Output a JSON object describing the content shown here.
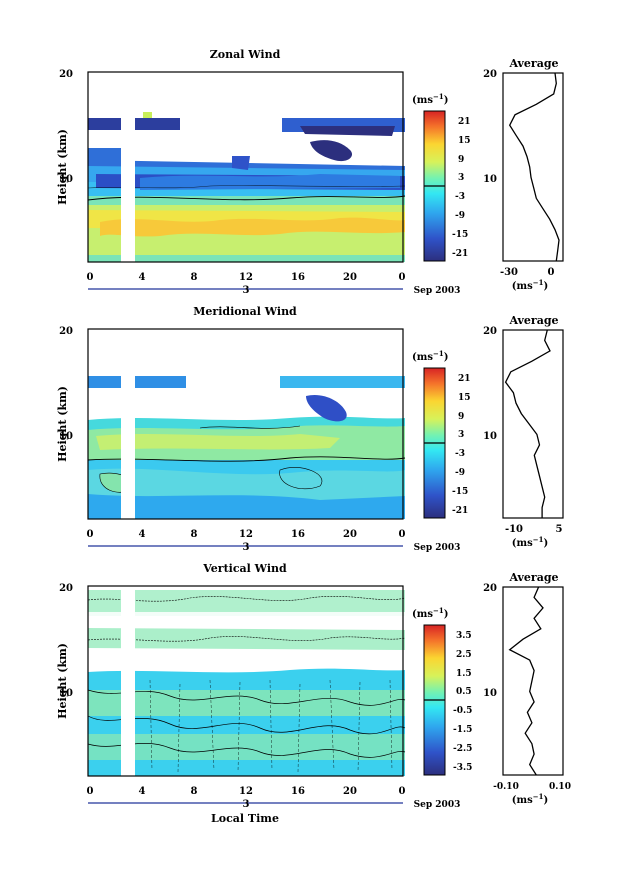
{
  "figure": {
    "xlabel": "Local Time",
    "date_label": "Sep 2003",
    "day_label": "3",
    "unit_label": "(ms",
    "unit_exp": "−1",
    "avg_unit_label": "(ms",
    "avg_unit_exp": "−1"
  },
  "chart_data": [
    {
      "type": "heatmap",
      "title": "Zonal Wind",
      "ylabel": "Height (km)",
      "y_ticks": [
        "20",
        "10"
      ],
      "x_ticks": [
        "0",
        "4",
        "8",
        "12",
        "16",
        "20",
        "0"
      ],
      "xlim": [
        0,
        24
      ],
      "ylim": [
        2,
        20
      ],
      "colorbar": {
        "ticks": [
          "21",
          "15",
          "9",
          "3",
          "-3",
          "-9",
          "-15",
          "-21"
        ],
        "range": [
          -24,
          24
        ]
      },
      "average": {
        "title": "Average",
        "x_ticks": [
          "-30",
          "0"
        ],
        "xlim": [
          -35,
          10
        ],
        "y_ticks": [
          "20",
          "10"
        ],
        "height": [
          2,
          3,
          4,
          5,
          6,
          7,
          8,
          9,
          10,
          11,
          12,
          13,
          14,
          15,
          16,
          17,
          18,
          19,
          20
        ],
        "value": [
          5,
          6,
          7,
          4,
          0,
          -5,
          -10,
          -12,
          -14,
          -15,
          -17,
          -20,
          -25,
          -30,
          -26,
          -10,
          3,
          5,
          4
        ]
      }
    },
    {
      "type": "heatmap",
      "title": "Meridional Wind",
      "ylabel": "Height (km)",
      "y_ticks": [
        "20",
        "10"
      ],
      "x_ticks": [
        "0",
        "4",
        "8",
        "12",
        "16",
        "20",
        "0"
      ],
      "xlim": [
        0,
        24
      ],
      "ylim": [
        2,
        20
      ],
      "colorbar": {
        "ticks": [
          "21",
          "15",
          "9",
          "3",
          "-3",
          "-9",
          "-15",
          "-21"
        ],
        "range": [
          -24,
          24
        ]
      },
      "average": {
        "title": "Average",
        "x_ticks": [
          "-10",
          "5"
        ],
        "xlim": [
          -15,
          8
        ],
        "y_ticks": [
          "20",
          "10"
        ],
        "height": [
          2,
          3,
          4,
          5,
          6,
          7,
          8,
          9,
          10,
          11,
          12,
          13,
          14,
          15,
          16,
          17,
          18,
          19,
          20
        ],
        "value": [
          0,
          0,
          1,
          0,
          -1,
          -2,
          -3,
          -1,
          -2,
          -5,
          -8,
          -10,
          -11,
          -14,
          -12,
          -4,
          3,
          1,
          2
        ]
      }
    },
    {
      "type": "heatmap",
      "title": "Vertical Wind",
      "ylabel": "Height (km)",
      "y_ticks": [
        "20",
        "10"
      ],
      "x_ticks": [
        "0",
        "4",
        "8",
        "12",
        "16",
        "20",
        "0"
      ],
      "xlim": [
        0,
        24
      ],
      "ylim": [
        2,
        20
      ],
      "colorbar": {
        "ticks": [
          "3.5",
          "2.5",
          "1.5",
          "0.5",
          "-0.5",
          "-1.5",
          "-2.5",
          "-3.5"
        ],
        "range": [
          -4,
          4
        ]
      },
      "average": {
        "title": "Average",
        "x_ticks": [
          "-0.10",
          "0.10"
        ],
        "xlim": [
          -0.15,
          0.12
        ],
        "y_ticks": [
          "20",
          "10"
        ],
        "height": [
          2,
          3,
          4,
          5,
          6,
          7,
          8,
          9,
          10,
          11,
          12,
          13,
          14,
          15,
          16,
          17,
          18,
          19,
          20
        ],
        "value": [
          0.0,
          -0.03,
          -0.01,
          -0.02,
          -0.05,
          -0.02,
          -0.04,
          -0.01,
          -0.03,
          -0.02,
          -0.01,
          -0.03,
          -0.12,
          -0.06,
          0.02,
          -0.01,
          0.03,
          -0.01,
          0.01
        ]
      }
    }
  ]
}
